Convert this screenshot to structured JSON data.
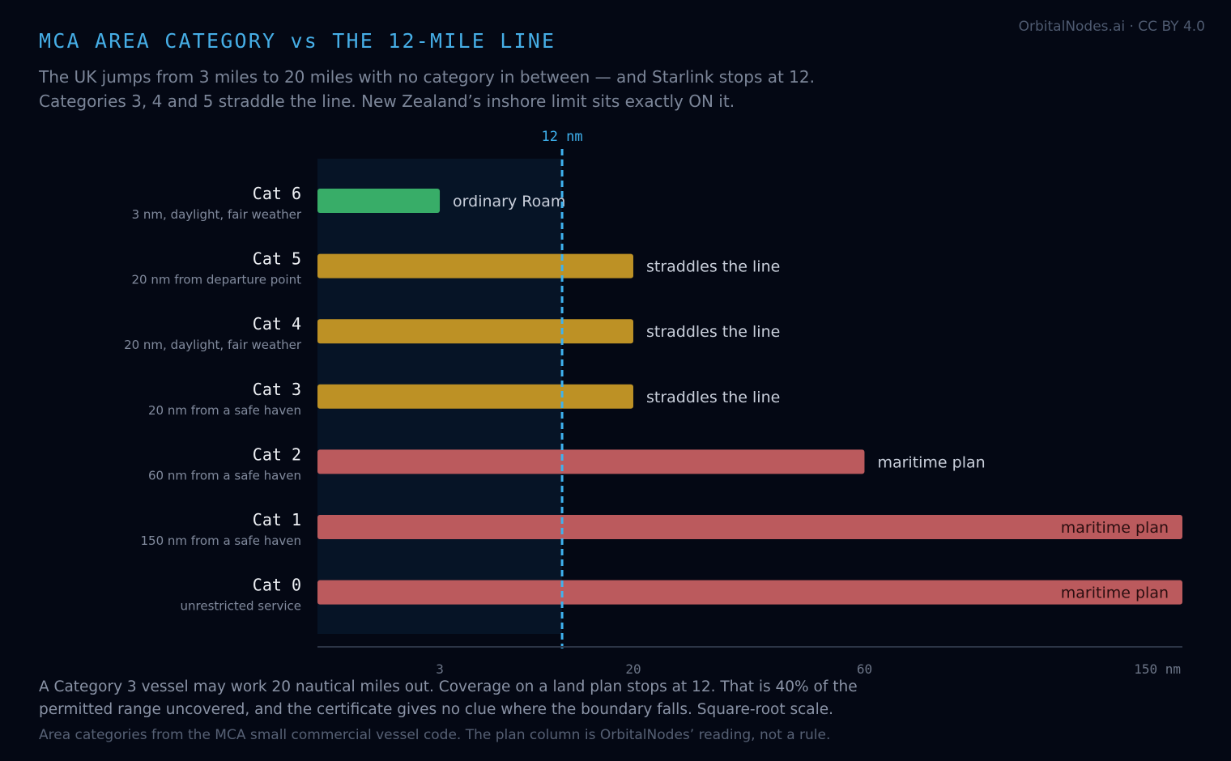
{
  "credit": "OrbitalNodes.ai · CC BY 4.0",
  "title": "MCA AREA CATEGORY vs THE 12-MILE LINE",
  "subtitle_lines": [
    "The UK jumps from 3 miles to 20 miles with no category in between — and Starlink stops at 12.",
    "Categories 3, 4 and 5 straddle the line. New Zealand’s inshore limit sits exactly ON it."
  ],
  "footer_lines": [
    "A Category 3 vessel may work 20 nautical miles out. Coverage on a land plan stops at 12. That is 40% of the",
    "permitted range uncovered, and the certificate gives no clue where the boundary falls. Square-root scale."
  ],
  "note": "Area categories from the MCA small commercial vessel code. The plan column is OrbitalNodes’ reading, not a rule.",
  "colors": {
    "green": "#38ad68",
    "amber": "#bd9125",
    "red": "#bb5a5d",
    "line": "#3fb2ef",
    "shade": "#061426"
  },
  "chart_data": {
    "type": "bar",
    "orientation": "horizontal",
    "scale": "sqrt",
    "xlim": [
      0,
      150
    ],
    "x_ticks": [
      {
        "value": 3,
        "label": "3"
      },
      {
        "value": 20,
        "label": "20"
      },
      {
        "value": 60,
        "label": "60"
      },
      {
        "value": 150,
        "label": "150 nm"
      }
    ],
    "reference_line": {
      "value": 12,
      "label": "12 nm"
    },
    "bars": [
      {
        "category": "Cat 6",
        "description": "3 nm, daylight, fair weather",
        "value": 3,
        "plan": "ordinary Roam",
        "color": "green"
      },
      {
        "category": "Cat 5",
        "description": "20 nm from departure point",
        "value": 20,
        "plan": "straddles the line",
        "color": "amber"
      },
      {
        "category": "Cat 4",
        "description": "20 nm, daylight, fair weather",
        "value": 20,
        "plan": "straddles the line",
        "color": "amber"
      },
      {
        "category": "Cat 3",
        "description": "20 nm from a safe haven",
        "value": 20,
        "plan": "straddles the line",
        "color": "amber"
      },
      {
        "category": "Cat 2",
        "description": "60 nm from a safe haven",
        "value": 60,
        "plan": "maritime plan",
        "color": "red"
      },
      {
        "category": "Cat 1",
        "description": "150 nm from a safe haven",
        "value": 150,
        "plan": "maritime plan",
        "color": "red"
      },
      {
        "category": "Cat 0",
        "description": "unrestricted service",
        "value": 150,
        "plan": "maritime plan",
        "color": "red"
      }
    ]
  }
}
